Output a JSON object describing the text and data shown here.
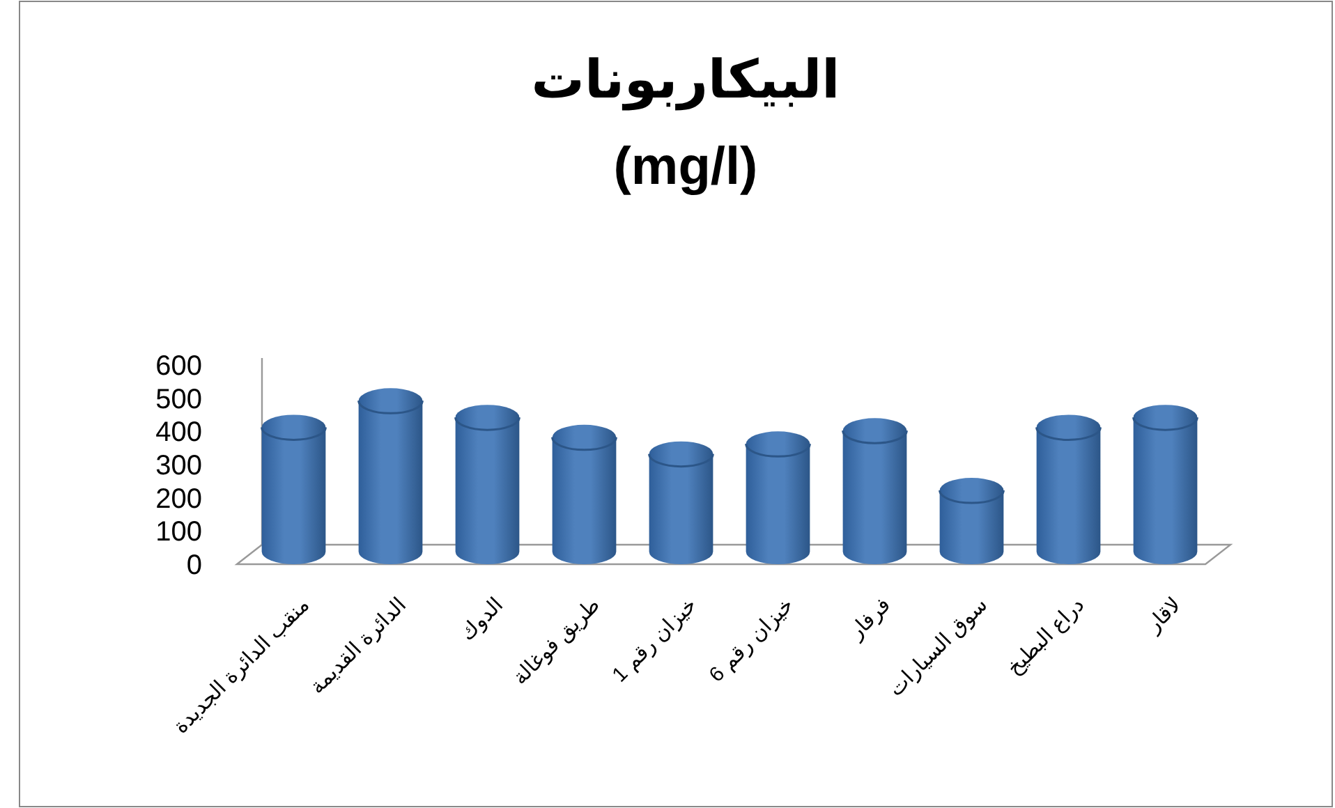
{
  "chart_data": {
    "type": "bar",
    "title": "البيكاربونات\n(mg/l)",
    "categories": [
      "منقب الدائرة الجديدة",
      "الدائرة القديمة",
      "الدوك",
      "طريق فوغالة",
      "خيزان رقم 1",
      "خيزان رقم 6",
      "فرفار",
      "سوق السيارات",
      "دراع البطيخ",
      "لاقار"
    ],
    "values": [
      450,
      530,
      480,
      420,
      370,
      400,
      440,
      260,
      450,
      480
    ],
    "color": "#4f81bd",
    "ylim": [
      0,
      600
    ],
    "yticks": [
      0,
      100,
      200,
      300,
      400,
      500,
      600
    ],
    "grid": false
  }
}
